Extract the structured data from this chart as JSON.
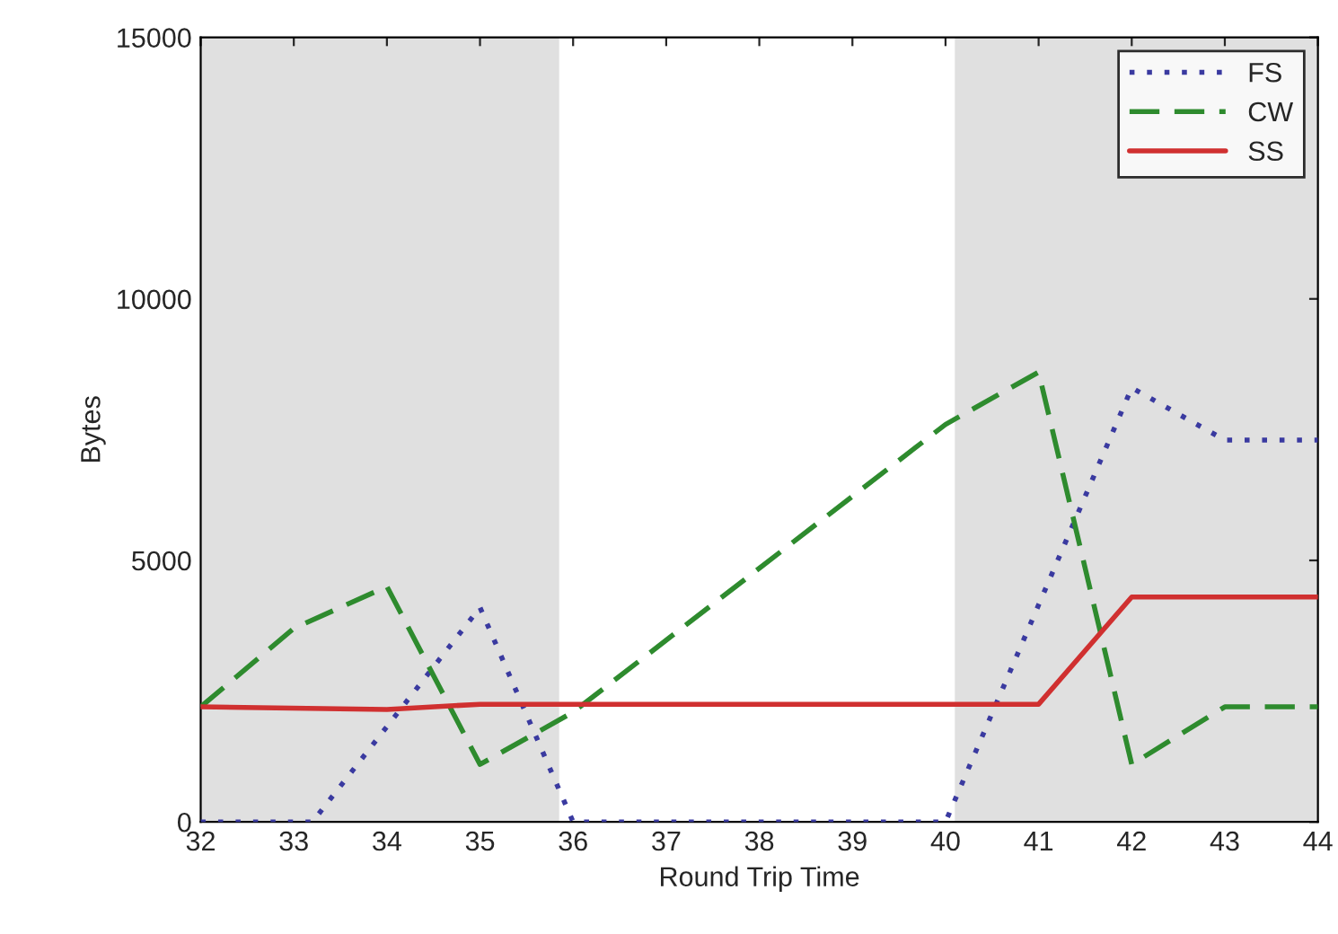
{
  "chart_data": {
    "type": "line",
    "xlabel": "Round Trip Time",
    "ylabel": "Bytes",
    "xlim": [
      32,
      44
    ],
    "ylim": [
      0,
      15000
    ],
    "xticks": [
      32,
      33,
      34,
      35,
      36,
      37,
      38,
      39,
      40,
      41,
      42,
      43,
      44
    ],
    "yticks": [
      0,
      5000,
      10000,
      15000
    ],
    "bands": [
      {
        "axis": "x",
        "from": 32,
        "to": 35.85,
        "color": "#e0e0e0"
      },
      {
        "axis": "x",
        "from": 40.1,
        "to": 44,
        "color": "#e0e0e0"
      }
    ],
    "series": [
      {
        "name": "FS",
        "color": "#3a3aa0",
        "line_style": "dotted",
        "x": [
          32,
          33.2,
          35,
          36,
          40,
          42,
          43,
          44
        ],
        "values": [
          0,
          0,
          4100,
          0,
          0,
          8300,
          7300,
          7300
        ]
      },
      {
        "name": "CW",
        "color": "#2e8b2e",
        "line_style": "dashed",
        "x": [
          32,
          33,
          34,
          35,
          36,
          40,
          41,
          42,
          43,
          44
        ],
        "values": [
          2200,
          3700,
          4500,
          1100,
          2100,
          7600,
          8600,
          1100,
          2200,
          2200
        ]
      },
      {
        "name": "SS",
        "color": "#d03030",
        "line_style": "solid",
        "x": [
          32,
          34,
          35,
          36,
          41,
          42,
          44
        ],
        "values": [
          2200,
          2150,
          2250,
          2250,
          2250,
          4300,
          4300
        ]
      }
    ],
    "legend": "top right",
    "grid": false
  }
}
